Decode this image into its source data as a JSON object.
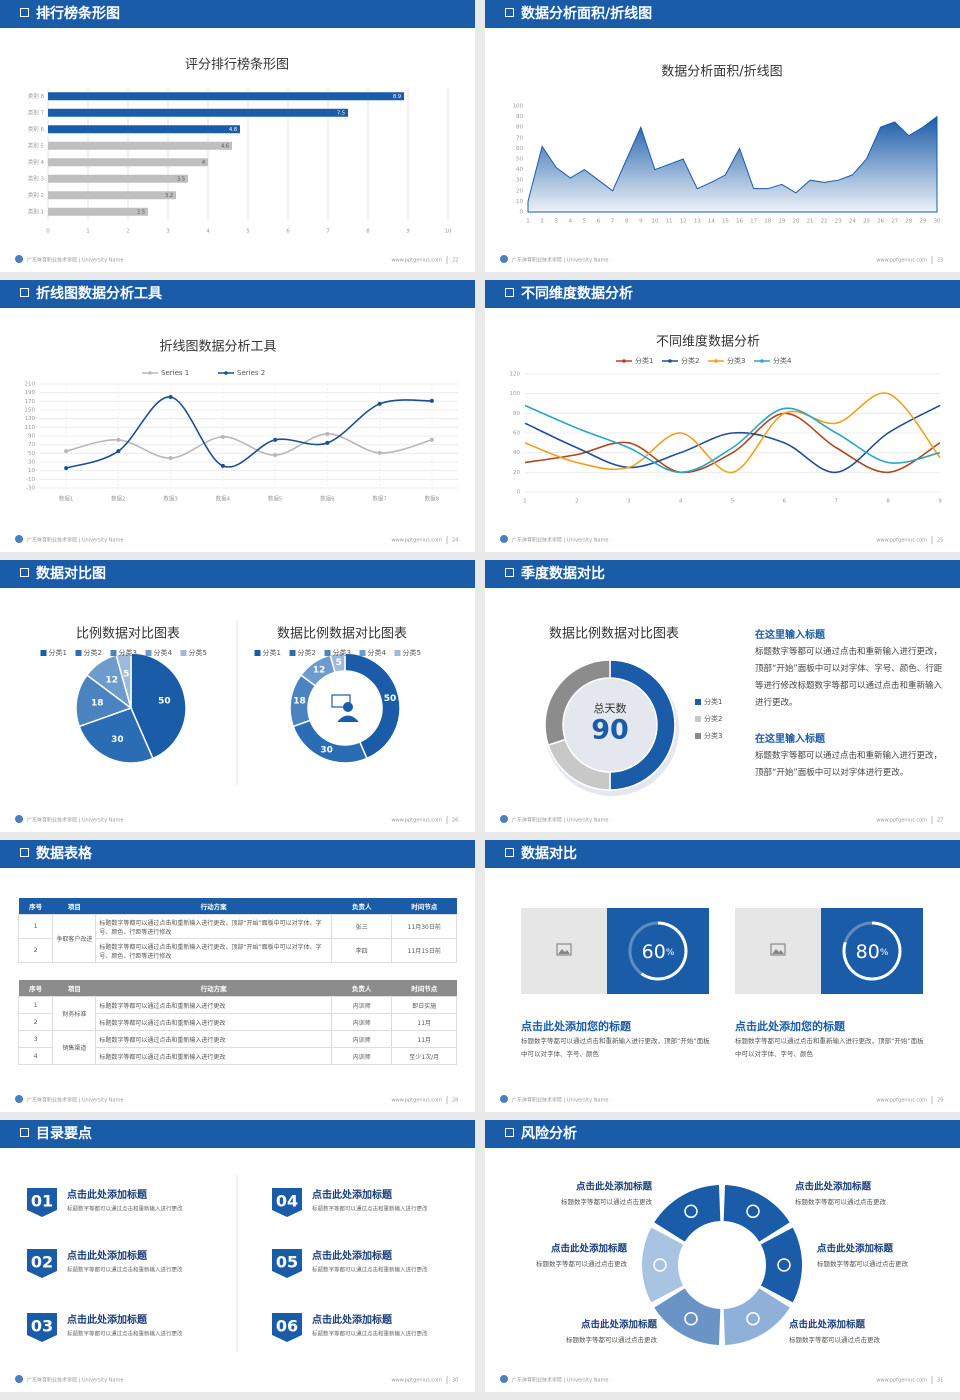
{
  "footer": {
    "school": "广东体育职业技术学院 | University Name",
    "url": "www.pptgenius.com"
  },
  "slides": [
    {
      "title": "排行榜条形图",
      "page": 22
    },
    {
      "title": "数据分析面积/折线图",
      "page": 23
    },
    {
      "title": "折线图数据分析工具",
      "page": 24
    },
    {
      "title": "不同维度数据分析",
      "page": 25
    },
    {
      "title": "数据对比图",
      "page": 26
    },
    {
      "title": "季度数据对比",
      "page": 27
    },
    {
      "title": "数据表格",
      "page": 28
    },
    {
      "title": "数据对比",
      "page": 29
    },
    {
      "title": "目录要点",
      "page": 30
    },
    {
      "title": "风险分析",
      "page": 31
    }
  ],
  "chart_data": [
    {
      "type": "hbar",
      "title": "评分排行榜条形图",
      "categories": [
        "类别 1",
        "类别 2",
        "类别 3",
        "类别 4",
        "类别 5",
        "类别 6",
        "类别 7",
        "类别 8"
      ],
      "values": [
        2.5,
        3.2,
        3.5,
        4,
        4.6,
        4.8,
        7.5,
        8.9
      ],
      "colors": [
        "#bfbfbf",
        "#bfbfbf",
        "#bfbfbf",
        "#bfbfbf",
        "#bfbfbf",
        "#1a5ca8",
        "#1a5ca8",
        "#1a5ca8"
      ],
      "xlim": [
        0,
        10
      ],
      "xticks": [
        0,
        1,
        2,
        3,
        4,
        5,
        6,
        7,
        8,
        9,
        10
      ],
      "grid": true
    },
    {
      "type": "area",
      "title": "数据分析面积/折线图",
      "x": [
        1,
        2,
        3,
        4,
        5,
        6,
        7,
        8,
        9,
        10,
        11,
        12,
        13,
        14,
        15,
        16,
        17,
        18,
        19,
        20,
        21,
        22,
        23,
        24,
        25,
        26,
        27,
        28,
        29,
        30
      ],
      "values": [
        10,
        62,
        42,
        32,
        40,
        30,
        20,
        50,
        80,
        40,
        45,
        50,
        22,
        28,
        35,
        60,
        22,
        22,
        26,
        18,
        30,
        28,
        30,
        35,
        50,
        80,
        85,
        72,
        80,
        90
      ],
      "color": "#1a5ca8",
      "xlim": [
        1,
        30
      ],
      "xticks": [
        1,
        2,
        3,
        4,
        5,
        6,
        7,
        8,
        9,
        10,
        11,
        12,
        13,
        14,
        15,
        16,
        17,
        18,
        19,
        20,
        21,
        22,
        23,
        24,
        25,
        26,
        27,
        28,
        29,
        30
      ],
      "ylim": [
        0,
        100
      ],
      "yticks": [
        0,
        10,
        20,
        30,
        40,
        50,
        60,
        70,
        80,
        90,
        100
      ]
    },
    {
      "type": "line",
      "title": "折线图数据分析工具",
      "categories": [
        "数据1",
        "数据2",
        "数据3",
        "数据4",
        "数据5",
        "数据6",
        "数据7",
        "数据8"
      ],
      "series": [
        {
          "name": "Series 1",
          "color": "#b8b8b8",
          "values": [
            55,
            81,
            39,
            88,
            46,
            95,
            51,
            81
          ]
        },
        {
          "name": "Series 2",
          "color": "#1a4f96",
          "values": [
            16,
            55,
            180,
            21,
            81,
            74,
            164,
            171
          ]
        }
      ],
      "ylim": [
        -30,
        210
      ],
      "yticks": [
        -30,
        -10,
        10,
        30,
        50,
        70,
        90,
        110,
        130,
        150,
        170,
        190,
        210
      ],
      "grid": true,
      "markers": true
    },
    {
      "type": "line",
      "title": "不同维度数据分析",
      "x": [
        1,
        2,
        3,
        4,
        5,
        6,
        7,
        8,
        9
      ],
      "series": [
        {
          "name": "分类1",
          "color": "#b5441a",
          "values": [
            30,
            38,
            50,
            20,
            40,
            80,
            45,
            20,
            50
          ]
        },
        {
          "name": "分类2",
          "color": "#1f4e99",
          "values": [
            70,
            45,
            25,
            40,
            60,
            50,
            20,
            60,
            88
          ]
        },
        {
          "name": "分类3",
          "color": "#f0a020",
          "values": [
            50,
            30,
            25,
            60,
            20,
            80,
            70,
            100,
            35
          ]
        },
        {
          "name": "分类4",
          "color": "#2aa5c8",
          "values": [
            88,
            65,
            45,
            20,
            45,
            85,
            60,
            30,
            40
          ]
        }
      ],
      "xlim": [
        1,
        9
      ],
      "xticks": [
        1,
        2,
        3,
        4,
        5,
        6,
        7,
        8,
        9
      ],
      "ylim": [
        0,
        120
      ],
      "yticks": [
        0,
        20,
        40,
        60,
        80,
        100,
        120
      ],
      "grid": true,
      "markers": false
    },
    {
      "type": "pie",
      "title": "比例数据对比图表",
      "categories": [
        "分类1",
        "分类2",
        "分类3",
        "分类4",
        "分类5"
      ],
      "values": [
        50,
        30,
        18,
        12,
        5
      ],
      "colors": [
        "#1a5ca8",
        "#2b6db4",
        "#4a83c0",
        "#6d9bcc",
        "#9dbadc"
      ],
      "data_labels": true
    },
    {
      "type": "donut",
      "title": "数据比例数据对比图表",
      "categories": [
        "分类1",
        "分类2",
        "分类3",
        "分类4",
        "分类5"
      ],
      "values": [
        50,
        30,
        18,
        12,
        5
      ],
      "colors": [
        "#1a5ca8",
        "#2b6db4",
        "#4a83c0",
        "#6d9bcc",
        "#9dbadc"
      ],
      "data_labels": true
    },
    {
      "type": "donut",
      "title": "数据比例数据对比图表",
      "categories": [
        "分类1",
        "分类2",
        "分类3"
      ],
      "values": [
        50,
        20,
        30
      ],
      "colors": [
        "#1a5ca8",
        "#c8c8c8",
        "#8c8c8c"
      ],
      "data_labels": false,
      "center_label": "总天数",
      "center_value": 90
    }
  ],
  "notes": [
    {
      "heading": "在这里输入标题",
      "text": "标题数字等都可以通过点击和重新输入进行更改，顶部“开始”面板中可以对字体、字号、颜色、行距等进行修改标题数字等都可以通过点击和重新输入进行更改。"
    },
    {
      "heading": "在这里输入标题",
      "text": "标题数字等都可以通过点击和重新输入进行更改，顶部“开始”面板中可以对字体进行更改。"
    }
  ],
  "tables": [
    {
      "header": [
        "序号",
        "项目",
        "行动方案",
        "负责人",
        "时间节点"
      ],
      "groups": [
        {
          "item": "争取客户改进",
          "rows": [
            [
              "1",
              "标题数字等都可以通过点击和重新输入进行更改，顶部“开始”面板中可以对字体、字号、颜色、行距等进行修改",
              "张三",
              "11月30日前"
            ],
            [
              "2",
              "标题数字等都可以通过点击和重新输入进行更改，顶部“开始”面板中可以对字体、字号、颜色、行距等进行修改",
              "李四",
              "11月15日前"
            ]
          ]
        }
      ]
    },
    {
      "header": [
        "序号",
        "项目",
        "行动方案",
        "负责人",
        "时间节点"
      ],
      "groups": [
        {
          "item": "财务标准",
          "rows": [
            [
              "1",
              "标题数字等都可以通过点击和重新输入进行更改",
              "内训师",
              "即日实施"
            ],
            [
              "2",
              "标题数字等都可以通过点击和重新输入进行更改",
              "内训师",
              "11月"
            ]
          ]
        },
        {
          "item": "销售渠道",
          "rows": [
            [
              "3",
              "标题数字等都可以通过点击和重新输入进行更改",
              "内训师",
              "11月"
            ],
            [
              "4",
              "标题数字等都可以通过点击和重新输入进行更改",
              "内训师",
              "至少1次/月"
            ]
          ]
        }
      ]
    }
  ],
  "cards": [
    {
      "value": 60,
      "unit": "%",
      "title": "点击此处添加您的标题",
      "text": "标题数字等都可以通过点击和重新输入进行更改，顶部“开始”面板中可以对字体、字号、颜色"
    },
    {
      "value": 80,
      "unit": "%",
      "title": "点击此处添加您的标题",
      "text": "标题数字等都可以通过点击和重新输入进行更改，顶部“开始”面板中可以对字体、字号、颜色"
    }
  ],
  "items": [
    {
      "num": "01",
      "title": "点击此处添加标题",
      "text": "标题数字等都可以通过点击和重新输入进行更改"
    },
    {
      "num": "02",
      "title": "点击此处添加标题",
      "text": "标题数字等都可以通过点击和重新输入进行更改"
    },
    {
      "num": "03",
      "title": "点击此处添加标题",
      "text": "标题数字等都可以通过点击和重新输入进行更改"
    },
    {
      "num": "04",
      "title": "点击此处添加标题",
      "text": "标题数字等都可以通过点击和重新输入进行更改"
    },
    {
      "num": "05",
      "title": "点击此处添加标题",
      "text": "标题数字等都可以通过点击和重新输入进行更改"
    },
    {
      "num": "06",
      "title": "点击此处添加标题",
      "text": "标题数字等都可以通过点击和重新输入进行更改"
    }
  ],
  "risks": [
    {
      "title": "点击此处添加标题",
      "text": "标题数字等都可以通过点击更改"
    },
    {
      "title": "点击此处添加标题",
      "text": "标题数字等都可以通过点击更改"
    },
    {
      "title": "点击此处添加标题",
      "text": "标题数字等都可以通过点击更改"
    },
    {
      "title": "点击此处添加标题",
      "text": "标题数字等都可以通过点击更改"
    },
    {
      "title": "点击此处添加标题",
      "text": "标题数字等都可以通过点击更改"
    },
    {
      "title": "点击此处添加标题",
      "text": "标题数字等都可以通过点击更改"
    }
  ]
}
